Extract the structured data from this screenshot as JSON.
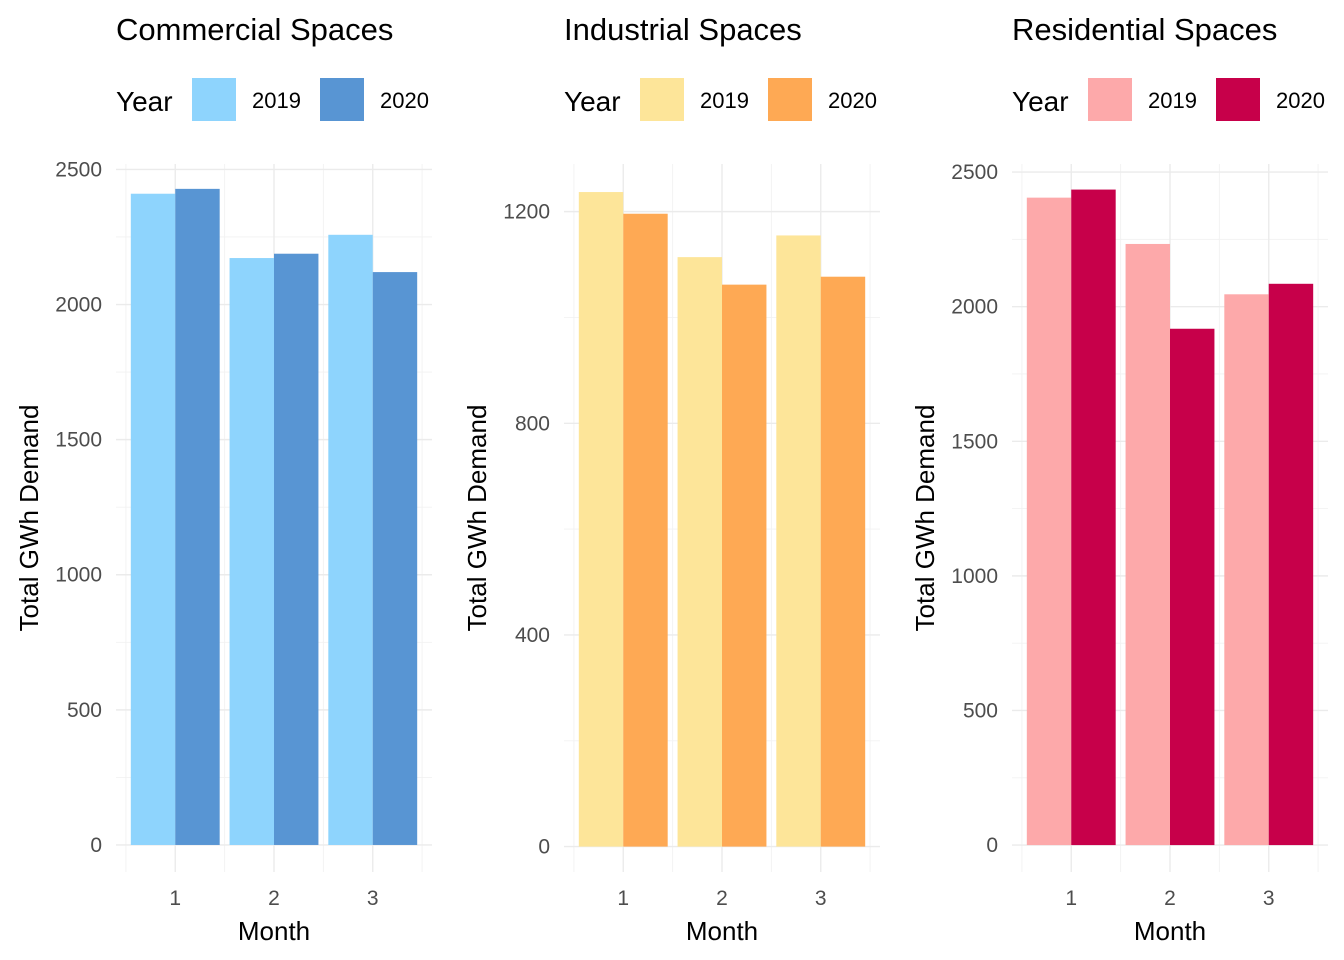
{
  "chart_data": [
    {
      "type": "bar",
      "title": "Commercial Spaces",
      "xlabel": "Month",
      "ylabel": "Total GWh Demand",
      "legend_title": "Year",
      "legend_placement": "top",
      "categories": [
        "1",
        "2",
        "3"
      ],
      "series": [
        {
          "name": "2019",
          "color": "#8ed4fd",
          "values": [
            2410,
            2172,
            2258
          ]
        },
        {
          "name": "2020",
          "color": "#5895d3",
          "values": [
            2428,
            2188,
            2120
          ]
        }
      ],
      "ylim": [
        -100,
        2520
      ],
      "yticks": [
        0,
        500,
        1000,
        1500,
        2000,
        2500
      ],
      "yticks_minor": [
        250,
        750,
        1250,
        1750,
        2250
      ],
      "grid": true
    },
    {
      "type": "bar",
      "title": "Industrial Spaces",
      "xlabel": "Month",
      "ylabel": "Total GWh Demand",
      "legend_title": "Year",
      "legend_placement": "top",
      "categories": [
        "1",
        "2",
        "3"
      ],
      "series": [
        {
          "name": "2019",
          "color": "#fde599",
          "values": [
            1237,
            1114,
            1155
          ]
        },
        {
          "name": "2020",
          "color": "#fea954",
          "values": [
            1196,
            1062,
            1077
          ]
        }
      ],
      "ylim": [
        -48,
        1290
      ],
      "yticks": [
        0,
        400,
        800,
        1200
      ],
      "yticks_minor": [
        200,
        600,
        1000
      ],
      "grid": true
    },
    {
      "type": "bar",
      "title": "Residential Spaces",
      "xlabel": "Month",
      "ylabel": "Total GWh Demand",
      "legend_title": "Year",
      "legend_placement": "top",
      "categories": [
        "1",
        "2",
        "3"
      ],
      "series": [
        {
          "name": "2019",
          "color": "#fda9aa",
          "values": [
            2405,
            2233,
            2046
          ]
        },
        {
          "name": "2020",
          "color": "#c7004a",
          "values": [
            2435,
            1918,
            2085
          ]
        }
      ],
      "ylim": [
        -100,
        2530
      ],
      "yticks": [
        0,
        500,
        1000,
        1500,
        2000,
        2500
      ],
      "yticks_minor": [
        250,
        750,
        1250,
        1750,
        2250
      ],
      "grid": true
    }
  ]
}
